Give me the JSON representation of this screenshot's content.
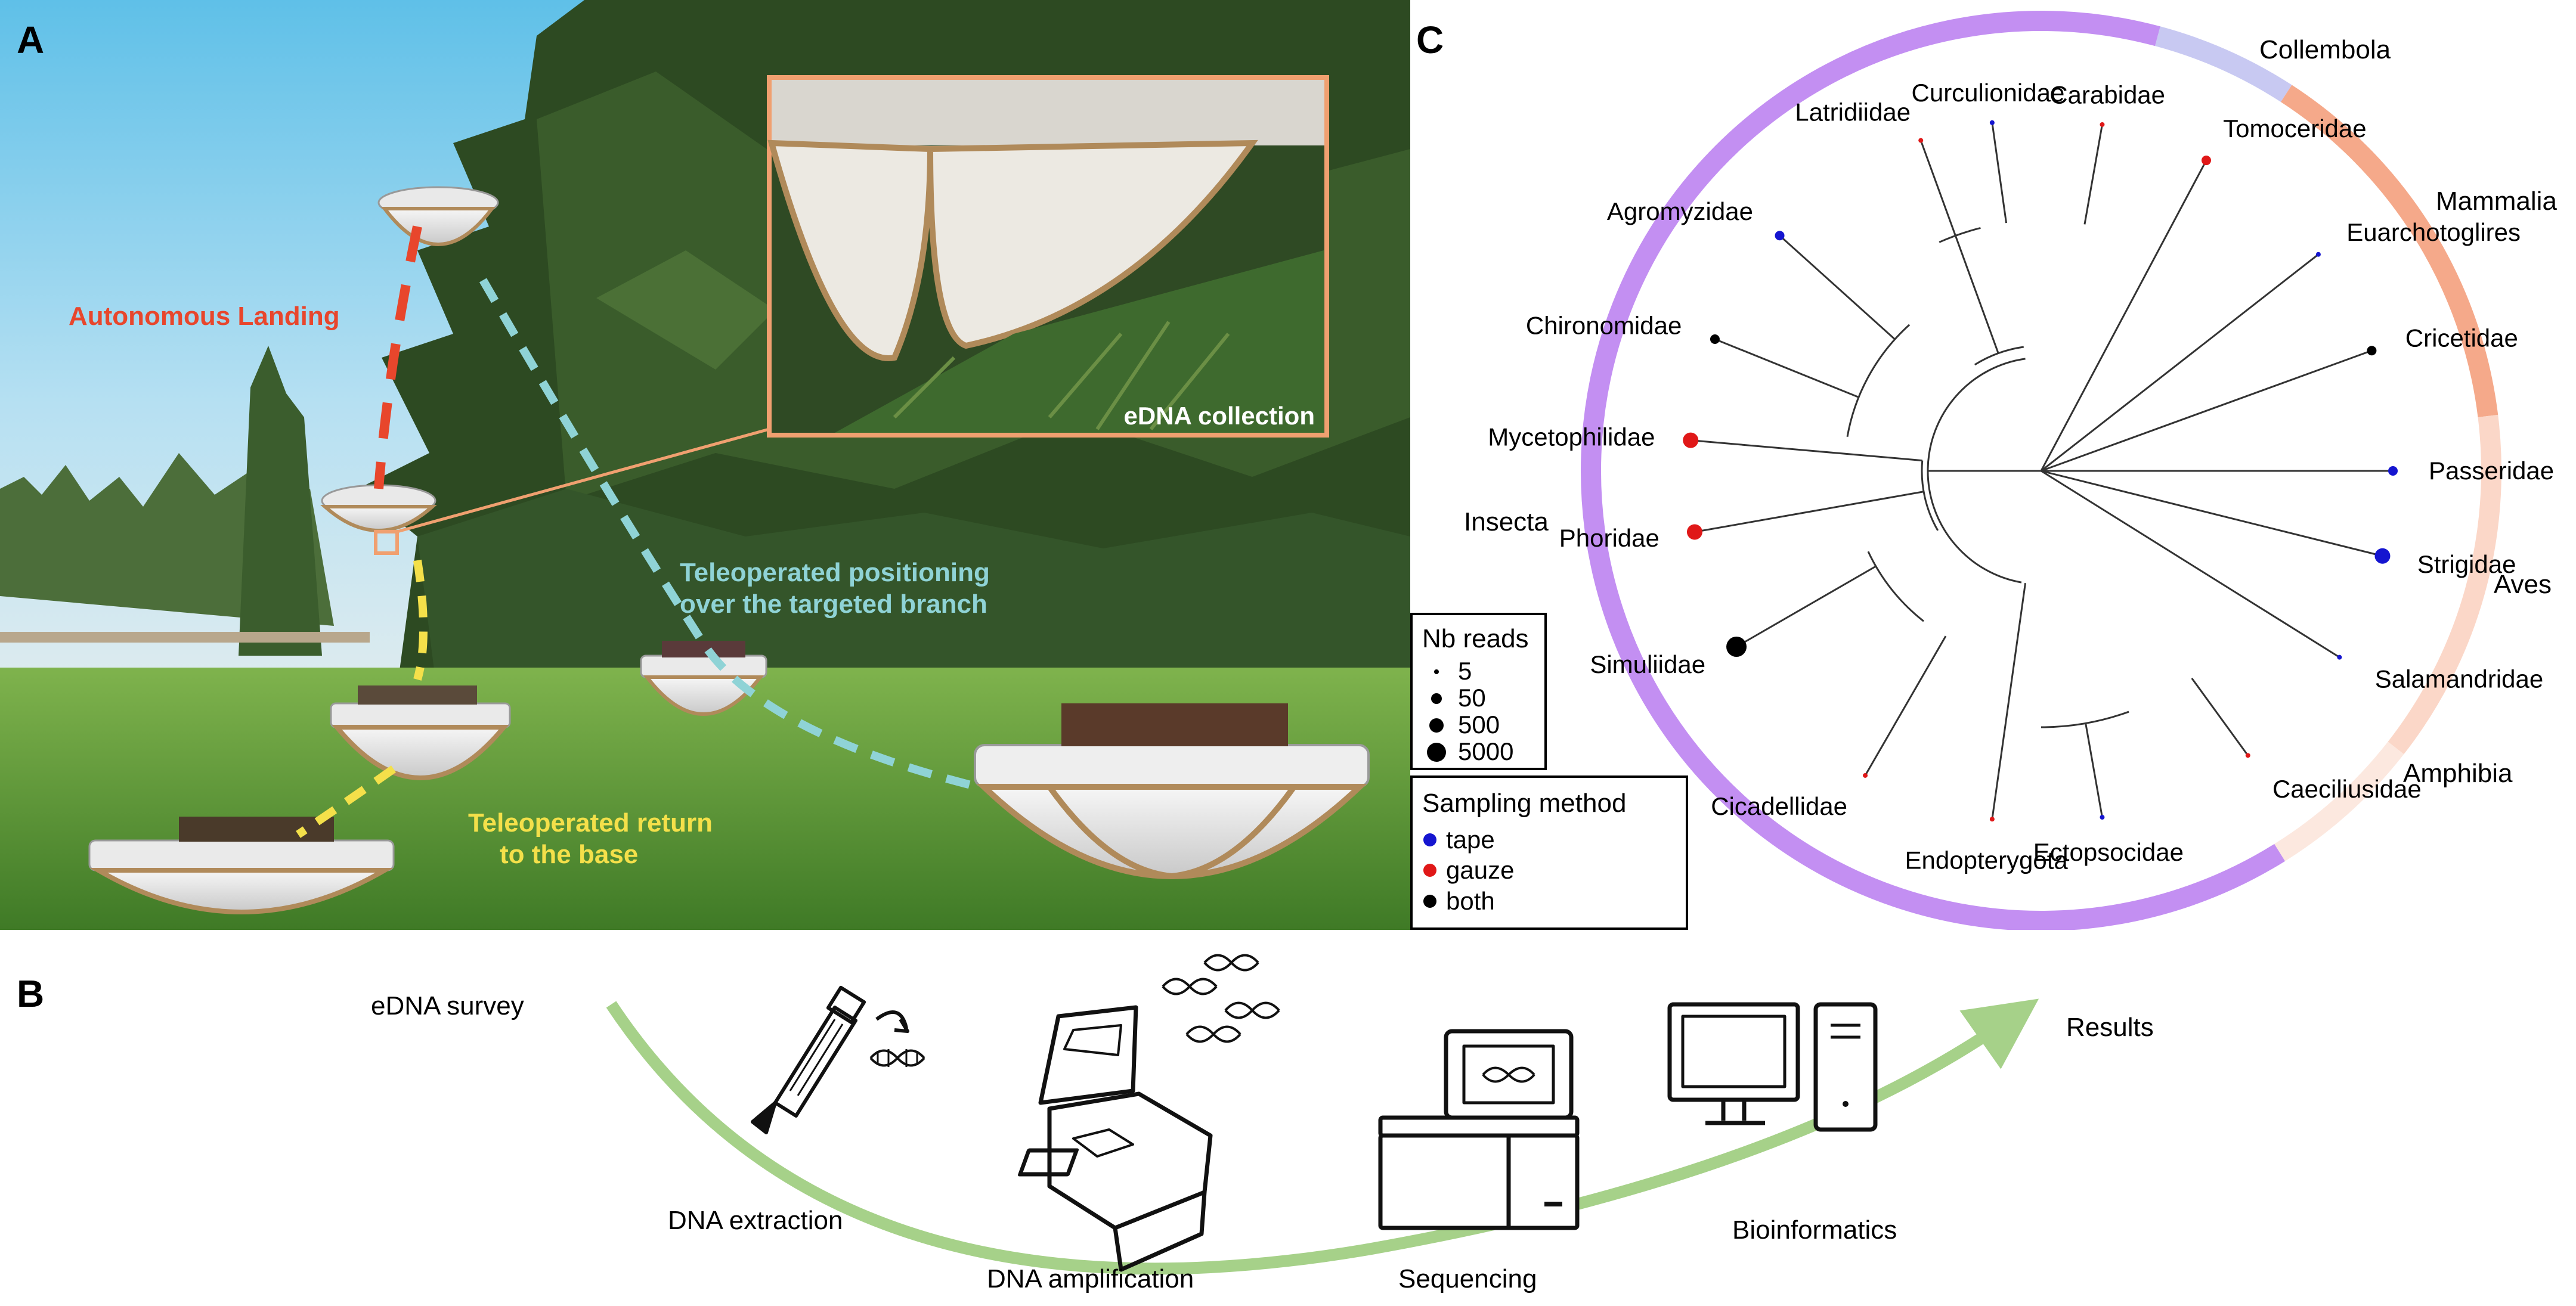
{
  "panelA": {
    "label": "A",
    "annotations": {
      "landing": "Autonomous Landing",
      "positioning_l1": "Teleoperated positioning",
      "positioning_l2": "over the targeted branch",
      "return_l1": "Teleoperated return",
      "return_l2": "to the base",
      "inset": "eDNA collection"
    },
    "colors": {
      "landing": "#e8462c",
      "positioning": "#8fd3d6",
      "return": "#f4e04a",
      "inset_border": "#f0a070"
    }
  },
  "panelB": {
    "label": "B",
    "steps": {
      "survey": "eDNA survey",
      "extraction": "DNA extraction",
      "amplification": "DNA amplification",
      "sequencing": "Sequencing",
      "bioinformatics": "Bioinformatics",
      "results": "Results"
    },
    "arrow_color": "#a6d189"
  },
  "panelC": {
    "label": "C",
    "groups": {
      "insecta": "Insecta",
      "collembola": "Collembola",
      "mammalia": "Mammalia",
      "aves": "Aves",
      "amphibia": "Amphibia"
    },
    "group_colors": {
      "insecta": "#c38ff2",
      "collembola": "#c8c9f2",
      "mammalia": "#f5a98a",
      "aves": "#fbd7c8",
      "amphibia": "#fce8df"
    },
    "taxa": [
      {
        "name": "Curculionidae",
        "method": "tape",
        "reads": "5"
      },
      {
        "name": "Carabidae",
        "method": "gauze",
        "reads": "5"
      },
      {
        "name": "Tomoceridae",
        "method": "gauze",
        "reads": "50"
      },
      {
        "name": "Euarchotoglires",
        "method": "tape",
        "reads": "5"
      },
      {
        "name": "Cricetidae",
        "method": "both",
        "reads": "50"
      },
      {
        "name": "Passeridae",
        "method": "tape",
        "reads": "50"
      },
      {
        "name": "Strigidae",
        "method": "tape",
        "reads": "500"
      },
      {
        "name": "Salamandridae",
        "method": "tape",
        "reads": "5"
      },
      {
        "name": "Caeciliusidae",
        "method": "gauze",
        "reads": "5"
      },
      {
        "name": "Ectopsocidae",
        "method": "tape",
        "reads": "5"
      },
      {
        "name": "Endopterygota",
        "method": "gauze",
        "reads": "5"
      },
      {
        "name": "Cicadellidae",
        "method": "gauze",
        "reads": "5"
      },
      {
        "name": "Simuliidae",
        "method": "both",
        "reads": "5000"
      },
      {
        "name": "Phoridae",
        "method": "gauze",
        "reads": "500"
      },
      {
        "name": "Mycetophilidae",
        "method": "gauze",
        "reads": "500"
      },
      {
        "name": "Chironomidae",
        "method": "both",
        "reads": "50"
      },
      {
        "name": "Agromyzidae",
        "method": "tape",
        "reads": "50"
      },
      {
        "name": "Latridiidae",
        "method": "gauze",
        "reads": "5"
      }
    ],
    "legend_reads": {
      "title": "Nb reads",
      "items": [
        "5",
        "50",
        "500",
        "5000"
      ]
    },
    "legend_method": {
      "title": "Sampling method",
      "items": [
        {
          "label": "tape",
          "color": "#1515d0"
        },
        {
          "label": "gauze",
          "color": "#e01818"
        },
        {
          "label": "both",
          "color": "#000000"
        }
      ]
    }
  }
}
